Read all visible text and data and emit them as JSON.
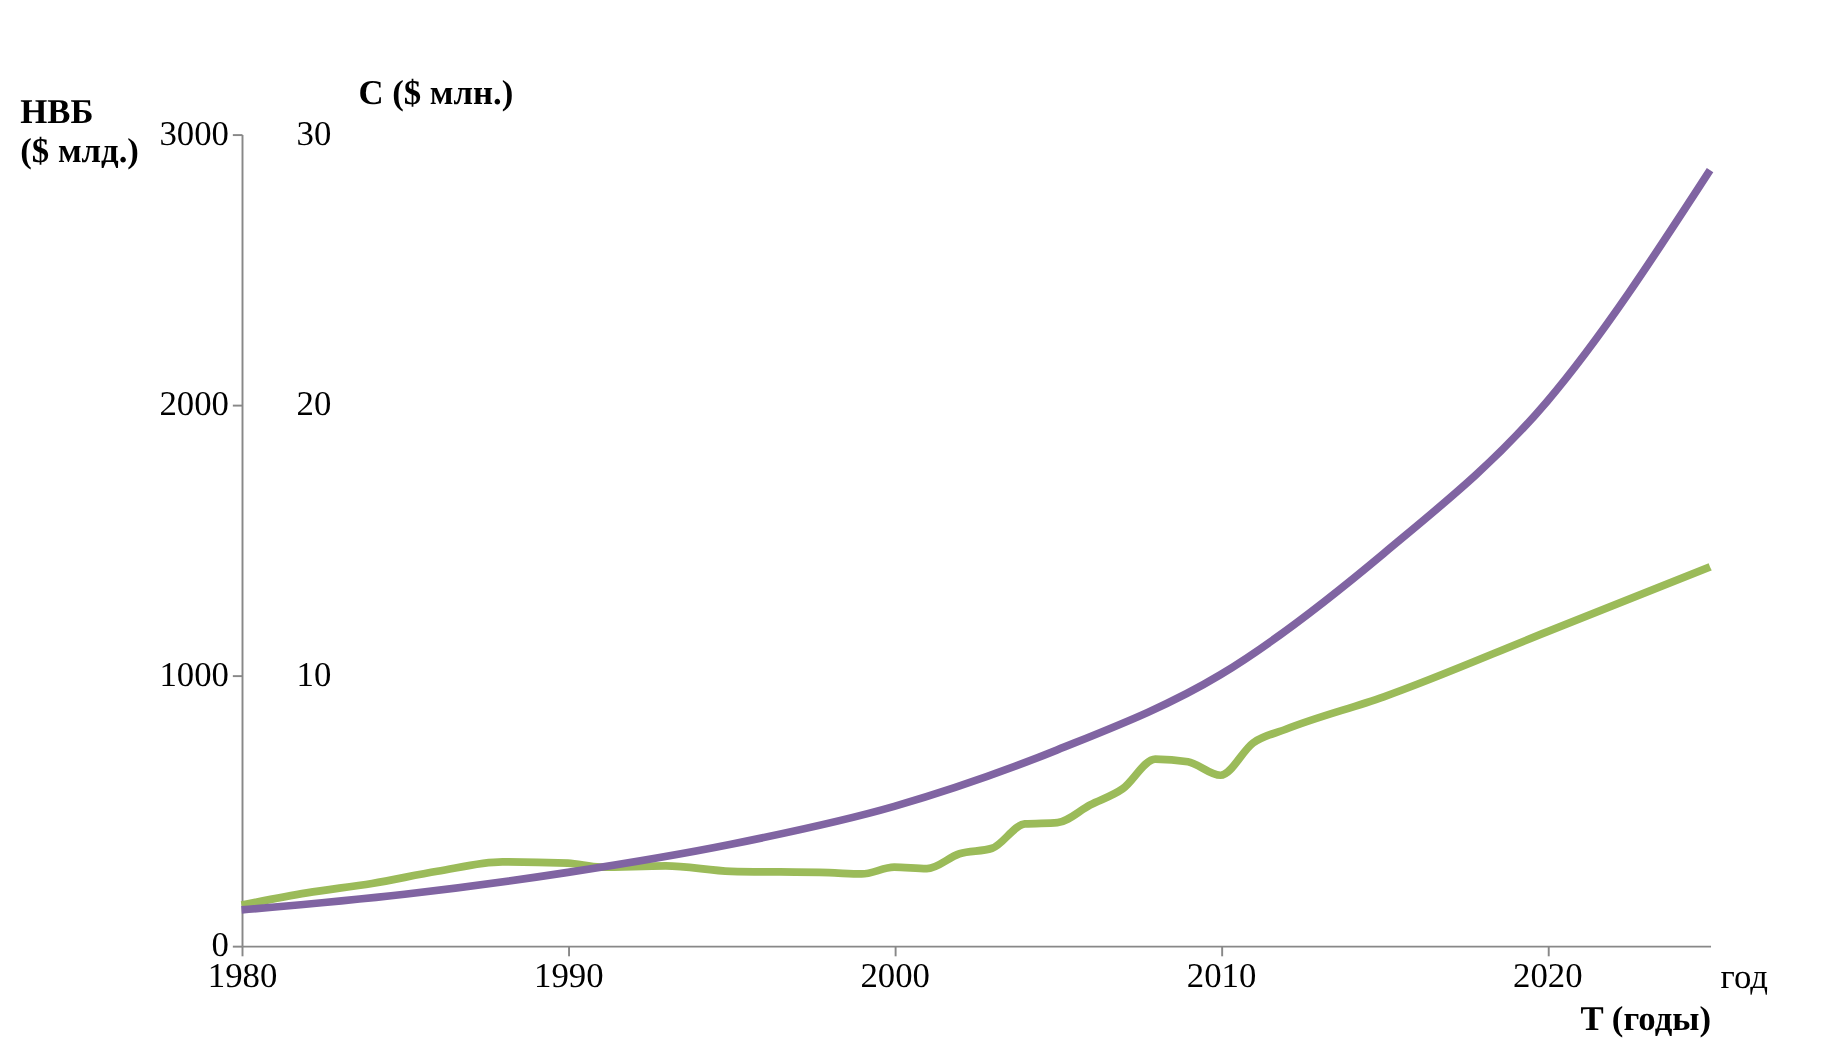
{
  "chart_data": {
    "type": "line",
    "xlabel": "T (годы)",
    "ylabel": "НВБ ($ млд.)",
    "y2label": "C ($ млн.)",
    "annotations": [
      "год"
    ],
    "xlim": [
      1980,
      2025
    ],
    "xticks": [
      1980,
      1990,
      2000,
      2010,
      2020
    ],
    "ylim": [
      0,
      3000
    ],
    "yticks": [
      0,
      1000,
      2000,
      3000
    ],
    "y2lim": [
      0,
      30
    ],
    "y2ticks": [
      10,
      20,
      30
    ],
    "grid": false,
    "marker": "none",
    "line_style": "solid",
    "series": [
      {
        "color": "#9bbb59",
        "x": [
          1980,
          1982,
          1984,
          1986,
          1988,
          1990,
          1991,
          1993,
          1995,
          1998,
          1999,
          2000,
          2001,
          2002,
          2003,
          2004,
          2005,
          2006,
          2007,
          2008,
          2009,
          2010,
          2011,
          2012,
          2015,
          2020,
          2025
        ],
        "values": [
          150,
          195,
          230,
          275,
          310,
          305,
          290,
          295,
          275,
          270,
          265,
          290,
          285,
          340,
          360,
          450,
          455,
          520,
          580,
          690,
          680,
          630,
          750,
          800,
          920,
          1160,
          1400
        ]
      },
      {
        "color": "#8064a2",
        "axis": "y2",
        "x": [
          1980,
          1985,
          1990,
          1995,
          2000,
          2005,
          2010,
          2015,
          2020,
          2025
        ],
        "values": [
          1.32,
          1.9,
          2.71,
          3.75,
          5.15,
          7.24,
          10.02,
          14.5,
          20.11,
          28.67
        ]
      }
    ]
  }
}
